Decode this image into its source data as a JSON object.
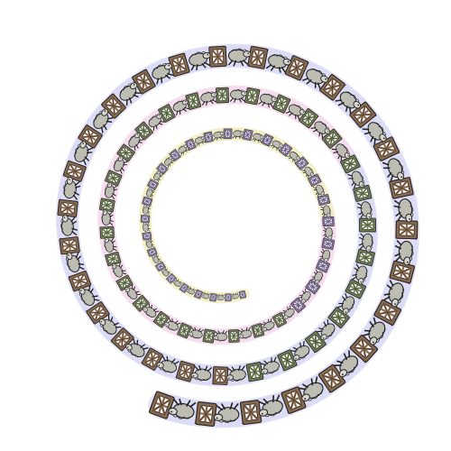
{
  "artwork": {
    "motif_icons": [
      "fence-gate-icon",
      "jumping-sheep-icon"
    ],
    "colors": {
      "background": "#ffffff",
      "outer_path": "#dcdcf6",
      "inner_path_pink": "#f6dcee",
      "inner_path_yellow": "#f2f0c8",
      "fence_outer": "#8a6a4e",
      "fence_mid": "#6f7f52",
      "fence_inner": "#8a78a8",
      "sheep_body": "#b9b9b0",
      "outline": "#222222"
    }
  }
}
